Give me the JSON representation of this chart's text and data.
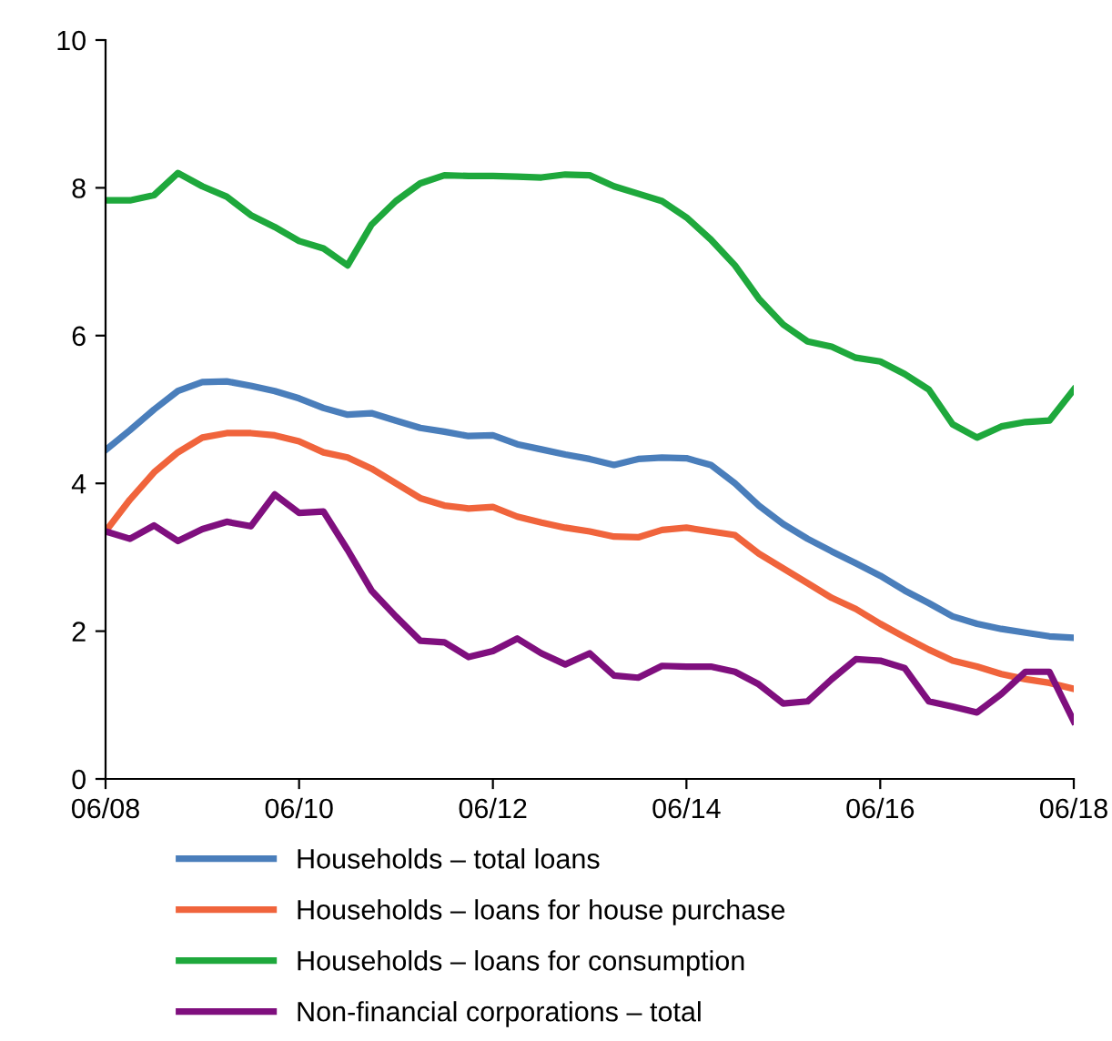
{
  "chart_data": {
    "type": "line",
    "x": [
      "2008-06",
      "2008-09",
      "2008-12",
      "2009-03",
      "2009-06",
      "2009-09",
      "2009-12",
      "2010-03",
      "2010-06",
      "2010-09",
      "2010-12",
      "2011-03",
      "2011-06",
      "2011-09",
      "2011-12",
      "2012-03",
      "2012-06",
      "2012-09",
      "2012-12",
      "2013-03",
      "2013-06",
      "2013-09",
      "2013-12",
      "2014-03",
      "2014-06",
      "2014-09",
      "2014-12",
      "2015-03",
      "2015-06",
      "2015-09",
      "2015-12",
      "2016-03",
      "2016-06",
      "2016-09",
      "2016-12",
      "2017-03",
      "2017-06",
      "2017-09",
      "2017-12",
      "2018-03",
      "2018-06"
    ],
    "series": [
      {
        "name": "Households – total loans",
        "color": "#4a7ebb",
        "values": [
          4.45,
          4.72,
          5.0,
          5.25,
          5.37,
          5.38,
          5.32,
          5.25,
          5.15,
          5.02,
          4.93,
          4.95,
          4.85,
          4.75,
          4.7,
          4.64,
          4.65,
          4.53,
          4.46,
          4.39,
          4.33,
          4.25,
          4.33,
          4.35,
          4.34,
          4.25,
          4.0,
          3.7,
          3.45,
          3.25,
          3.08,
          2.92,
          2.75,
          2.55,
          2.38,
          2.2,
          2.1,
          2.03,
          1.98,
          1.93,
          1.91
        ]
      },
      {
        "name": "Households – loans for house purchase",
        "color": "#f0643c",
        "values": [
          3.35,
          3.78,
          4.15,
          4.42,
          4.62,
          4.68,
          4.68,
          4.65,
          4.57,
          4.42,
          4.35,
          4.2,
          4.0,
          3.8,
          3.7,
          3.66,
          3.68,
          3.55,
          3.47,
          3.4,
          3.35,
          3.28,
          3.27,
          3.37,
          3.4,
          3.35,
          3.3,
          3.05,
          2.85,
          2.65,
          2.45,
          2.3,
          2.1,
          1.92,
          1.75,
          1.6,
          1.52,
          1.42,
          1.35,
          1.3,
          1.22
        ]
      },
      {
        "name": "Households – loans for consumption",
        "color": "#1ea83c",
        "values": [
          7.83,
          7.83,
          7.9,
          8.2,
          8.02,
          7.88,
          7.63,
          7.47,
          7.28,
          7.18,
          6.95,
          7.5,
          7.82,
          8.06,
          8.17,
          8.16,
          8.16,
          8.15,
          8.14,
          8.18,
          8.17,
          8.02,
          7.92,
          7.82,
          7.6,
          7.3,
          6.95,
          6.5,
          6.15,
          5.92,
          5.85,
          5.7,
          5.65,
          5.48,
          5.27,
          4.8,
          4.62,
          4.77,
          4.83,
          4.85,
          5.27
        ]
      },
      {
        "name": "Non-financial corporations – total",
        "color": "#7f0f7e",
        "values": [
          3.35,
          3.25,
          3.43,
          3.22,
          3.38,
          3.48,
          3.42,
          3.85,
          3.6,
          3.62,
          3.1,
          2.55,
          2.2,
          1.87,
          1.85,
          1.65,
          1.73,
          1.9,
          1.7,
          1.55,
          1.7,
          1.4,
          1.37,
          1.53,
          1.52,
          1.52,
          1.45,
          1.28,
          1.02,
          1.05,
          1.35,
          1.62,
          1.6,
          1.5,
          1.05,
          0.98,
          0.9,
          1.15,
          1.45,
          1.45,
          0.78
        ]
      }
    ],
    "xlim": [
      "2008-06",
      "2018-06"
    ],
    "xticks": [
      {
        "value": "2008-06",
        "label": "06/08"
      },
      {
        "value": "2010-06",
        "label": "06/10"
      },
      {
        "value": "2012-06",
        "label": "06/12"
      },
      {
        "value": "2014-06",
        "label": "06/14"
      },
      {
        "value": "2016-06",
        "label": "06/16"
      },
      {
        "value": "2018-06",
        "label": "06/18"
      }
    ],
    "ylim": [
      0,
      10
    ],
    "yticks": [
      0,
      2,
      4,
      6,
      8,
      10
    ],
    "grid": false,
    "legend": "bottom",
    "marker": "none",
    "line_style": "solid"
  }
}
